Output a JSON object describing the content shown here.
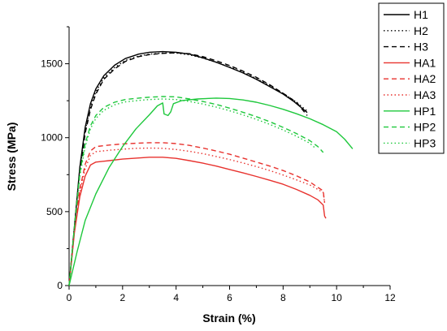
{
  "chart_data": {
    "type": "line",
    "xlabel": "Strain (%)",
    "ylabel": "Stress (MPa)",
    "xlim": [
      0,
      12
    ],
    "ylim": [
      0,
      1750
    ],
    "xticks": [
      "0",
      "2",
      "4",
      "6",
      "8",
      "10",
      "12"
    ],
    "yticks": [
      "0",
      "500",
      "1000",
      "1500"
    ],
    "grid": false,
    "legend_position": "right",
    "series": [
      {
        "name": "H1",
        "color": "#000000",
        "style": "solid",
        "points": [
          [
            0,
            0
          ],
          [
            0.2,
            400
          ],
          [
            0.4,
            800
          ],
          [
            0.6,
            1070
          ],
          [
            0.8,
            1230
          ],
          [
            1.0,
            1330
          ],
          [
            1.3,
            1420
          ],
          [
            1.7,
            1490
          ],
          [
            2.1,
            1535
          ],
          [
            2.6,
            1565
          ],
          [
            3.0,
            1578
          ],
          [
            3.5,
            1582
          ],
          [
            4.0,
            1578
          ],
          [
            4.5,
            1565
          ],
          [
            5.0,
            1540
          ],
          [
            5.5,
            1510
          ],
          [
            6.0,
            1475
          ],
          [
            6.5,
            1438
          ],
          [
            7.0,
            1395
          ],
          [
            7.5,
            1345
          ],
          [
            8.0,
            1295
          ],
          [
            8.4,
            1245
          ],
          [
            8.6,
            1215
          ],
          [
            8.9,
            1170
          ]
        ]
      },
      {
        "name": "H2",
        "color": "#000000",
        "style": "dotted",
        "points": [
          [
            0,
            0
          ],
          [
            0.2,
            390
          ],
          [
            0.4,
            780
          ],
          [
            0.6,
            1050
          ],
          [
            0.8,
            1210
          ],
          [
            1.0,
            1310
          ],
          [
            1.3,
            1405
          ],
          [
            1.7,
            1475
          ],
          [
            2.1,
            1522
          ],
          [
            2.6,
            1552
          ],
          [
            3.0,
            1565
          ],
          [
            3.5,
            1572
          ],
          [
            4.0,
            1572
          ],
          [
            4.5,
            1560
          ],
          [
            5.0,
            1538
          ],
          [
            5.5,
            1510
          ],
          [
            6.0,
            1478
          ],
          [
            6.5,
            1442
          ],
          [
            7.0,
            1400
          ],
          [
            7.5,
            1352
          ],
          [
            8.0,
            1300
          ],
          [
            8.5,
            1240
          ],
          [
            8.9,
            1180
          ]
        ]
      },
      {
        "name": "H3",
        "color": "#000000",
        "style": "dashed",
        "points": [
          [
            0,
            0
          ],
          [
            0.2,
            380
          ],
          [
            0.4,
            760
          ],
          [
            0.6,
            1030
          ],
          [
            0.8,
            1190
          ],
          [
            1.0,
            1295
          ],
          [
            1.3,
            1395
          ],
          [
            1.7,
            1465
          ],
          [
            2.1,
            1515
          ],
          [
            2.6,
            1548
          ],
          [
            3.0,
            1562
          ],
          [
            3.5,
            1570
          ],
          [
            4.0,
            1574
          ],
          [
            4.5,
            1568
          ],
          [
            5.0,
            1548
          ],
          [
            5.5,
            1520
          ],
          [
            6.0,
            1488
          ],
          [
            6.5,
            1450
          ],
          [
            7.0,
            1408
          ],
          [
            7.5,
            1358
          ],
          [
            8.0,
            1300
          ],
          [
            8.5,
            1240
          ],
          [
            8.9,
            1150
          ]
        ]
      },
      {
        "name": "HA1",
        "color": "#e8322e",
        "style": "solid",
        "points": [
          [
            0,
            0
          ],
          [
            0.2,
            360
          ],
          [
            0.4,
            600
          ],
          [
            0.6,
            740
          ],
          [
            0.8,
            815
          ],
          [
            1.0,
            835
          ],
          [
            1.5,
            845
          ],
          [
            2.0,
            855
          ],
          [
            2.5,
            862
          ],
          [
            3.0,
            868
          ],
          [
            3.5,
            868
          ],
          [
            4.0,
            860
          ],
          [
            4.5,
            845
          ],
          [
            5.0,
            828
          ],
          [
            5.5,
            808
          ],
          [
            6.0,
            785
          ],
          [
            6.5,
            762
          ],
          [
            7.0,
            738
          ],
          [
            7.5,
            712
          ],
          [
            8.0,
            685
          ],
          [
            8.5,
            650
          ],
          [
            9.0,
            610
          ],
          [
            9.3,
            580
          ],
          [
            9.5,
            545
          ],
          [
            9.55,
            470
          ],
          [
            9.6,
            455
          ]
        ]
      },
      {
        "name": "HA2",
        "color": "#e8322e",
        "style": "dashed",
        "points": [
          [
            0,
            0
          ],
          [
            0.2,
            380
          ],
          [
            0.4,
            650
          ],
          [
            0.6,
            820
          ],
          [
            0.8,
            910
          ],
          [
            1.0,
            940
          ],
          [
            1.5,
            950
          ],
          [
            2.0,
            958
          ],
          [
            2.5,
            962
          ],
          [
            3.0,
            966
          ],
          [
            3.5,
            966
          ],
          [
            4.0,
            960
          ],
          [
            4.5,
            948
          ],
          [
            5.0,
            930
          ],
          [
            5.5,
            910
          ],
          [
            6.0,
            888
          ],
          [
            6.5,
            862
          ],
          [
            7.0,
            835
          ],
          [
            7.5,
            808
          ],
          [
            8.0,
            778
          ],
          [
            8.5,
            742
          ],
          [
            9.0,
            700
          ],
          [
            9.5,
            640
          ],
          [
            9.55,
            560
          ]
        ]
      },
      {
        "name": "HA3",
        "color": "#e8322e",
        "style": "dotted",
        "points": [
          [
            0,
            0
          ],
          [
            0.2,
            370
          ],
          [
            0.4,
            630
          ],
          [
            0.6,
            790
          ],
          [
            0.8,
            880
          ],
          [
            1.0,
            905
          ],
          [
            1.5,
            915
          ],
          [
            2.0,
            922
          ],
          [
            2.5,
            928
          ],
          [
            3.0,
            930
          ],
          [
            3.5,
            928
          ],
          [
            4.0,
            920
          ],
          [
            4.5,
            908
          ],
          [
            5.0,
            892
          ],
          [
            5.5,
            873
          ],
          [
            6.0,
            852
          ],
          [
            6.5,
            829
          ],
          [
            7.0,
            805
          ],
          [
            7.5,
            778
          ],
          [
            8.0,
            748
          ],
          [
            8.5,
            715
          ],
          [
            9.0,
            680
          ],
          [
            9.5,
            630
          ],
          [
            9.55,
            560
          ]
        ]
      },
      {
        "name": "HP1",
        "color": "#1ec83c",
        "style": "solid",
        "points": [
          [
            0,
            0
          ],
          [
            0.3,
            230
          ],
          [
            0.6,
            440
          ],
          [
            1.0,
            620
          ],
          [
            1.5,
            800
          ],
          [
            2.0,
            940
          ],
          [
            2.5,
            1060
          ],
          [
            3.0,
            1155
          ],
          [
            3.3,
            1215
          ],
          [
            3.5,
            1235
          ],
          [
            3.55,
            1160
          ],
          [
            3.7,
            1150
          ],
          [
            3.8,
            1175
          ],
          [
            3.9,
            1230
          ],
          [
            4.2,
            1250
          ],
          [
            4.8,
            1262
          ],
          [
            5.5,
            1268
          ],
          [
            6.0,
            1265
          ],
          [
            6.5,
            1255
          ],
          [
            7.0,
            1240
          ],
          [
            7.5,
            1218
          ],
          [
            8.0,
            1192
          ],
          [
            8.5,
            1162
          ],
          [
            9.0,
            1128
          ],
          [
            9.5,
            1088
          ],
          [
            10.0,
            1040
          ],
          [
            10.3,
            990
          ],
          [
            10.6,
            925
          ]
        ]
      },
      {
        "name": "HP2",
        "color": "#1ec83c",
        "style": "dashed",
        "points": [
          [
            0,
            0
          ],
          [
            0.2,
            400
          ],
          [
            0.4,
            760
          ],
          [
            0.6,
            960
          ],
          [
            0.8,
            1080
          ],
          [
            1.0,
            1150
          ],
          [
            1.3,
            1205
          ],
          [
            1.7,
            1240
          ],
          [
            2.1,
            1258
          ],
          [
            2.6,
            1268
          ],
          [
            3.0,
            1274
          ],
          [
            3.5,
            1278
          ],
          [
            4.0,
            1276
          ],
          [
            4.5,
            1262
          ],
          [
            5.0,
            1245
          ],
          [
            5.5,
            1225
          ],
          [
            6.0,
            1200
          ],
          [
            6.5,
            1172
          ],
          [
            7.0,
            1142
          ],
          [
            7.5,
            1108
          ],
          [
            8.0,
            1070
          ],
          [
            8.5,
            1028
          ],
          [
            9.0,
            980
          ],
          [
            9.3,
            940
          ],
          [
            9.5,
            900
          ]
        ]
      },
      {
        "name": "HP3",
        "color": "#1ec83c",
        "style": "dotted",
        "points": [
          [
            0,
            0
          ],
          [
            0.2,
            390
          ],
          [
            0.4,
            740
          ],
          [
            0.6,
            940
          ],
          [
            0.8,
            1060
          ],
          [
            1.0,
            1130
          ],
          [
            1.3,
            1185
          ],
          [
            1.7,
            1222
          ],
          [
            2.1,
            1242
          ],
          [
            2.6,
            1252
          ],
          [
            3.0,
            1258
          ],
          [
            3.5,
            1262
          ],
          [
            4.0,
            1258
          ],
          [
            4.5,
            1245
          ],
          [
            5.0,
            1228
          ],
          [
            5.5,
            1207
          ],
          [
            6.0,
            1182
          ],
          [
            6.5,
            1154
          ],
          [
            7.0,
            1124
          ],
          [
            7.5,
            1090
          ],
          [
            8.0,
            1052
          ],
          [
            8.5,
            1010
          ],
          [
            9.0,
            962
          ],
          [
            9.2,
            930
          ]
        ]
      }
    ]
  }
}
